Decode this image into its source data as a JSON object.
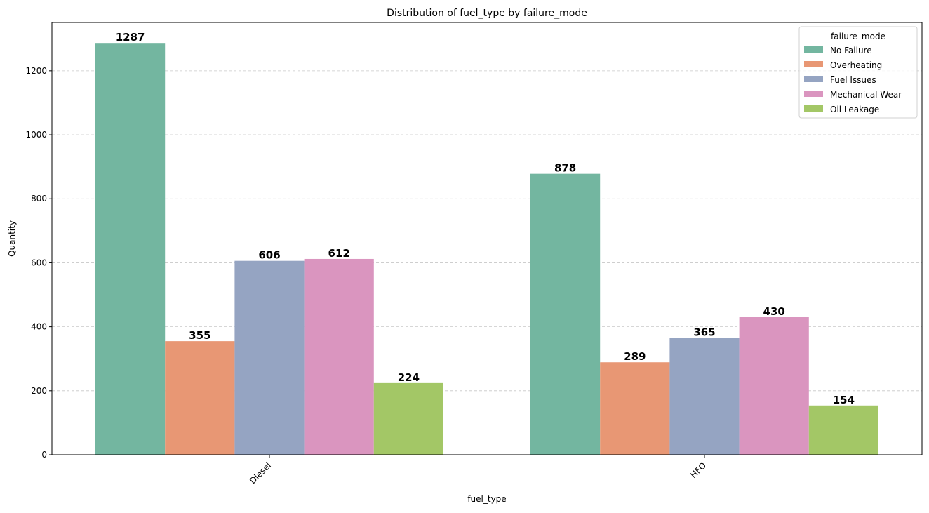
{
  "chart_data": {
    "type": "bar",
    "title": "Distribution of fuel_type by failure_mode",
    "xlabel": "fuel_type",
    "ylabel": "Quantity",
    "categories": [
      "Diesel",
      "HFO"
    ],
    "ylim": [
      0,
      1351
    ],
    "yticks": [
      0,
      200,
      400,
      600,
      800,
      1000,
      1200
    ],
    "grid": "y-dashed",
    "legend": {
      "title": "failure_mode",
      "placement": "top-right"
    },
    "series": [
      {
        "name": "No Failure",
        "color": "#73b6a0",
        "values": [
          1287,
          878
        ]
      },
      {
        "name": "Overheating",
        "color": "#e89774",
        "values": [
          355,
          289
        ]
      },
      {
        "name": "Fuel Issues",
        "color": "#95a4c2",
        "values": [
          606,
          365
        ]
      },
      {
        "name": "Mechanical Wear",
        "color": "#da95bf",
        "values": [
          612,
          430
        ]
      },
      {
        "name": "Oil Leakage",
        "color": "#a3c766",
        "values": [
          224,
          154
        ]
      }
    ]
  }
}
